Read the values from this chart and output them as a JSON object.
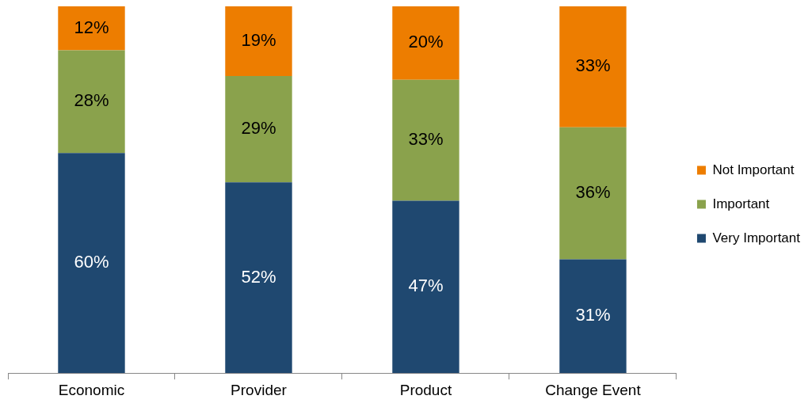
{
  "chart_data": {
    "type": "bar",
    "stacked": true,
    "categories": [
      "Economic",
      "Provider",
      "Product",
      "Change Event"
    ],
    "legend": "right",
    "grid": false,
    "series": [
      {
        "name": "Very Important",
        "color": "#1f4870",
        "values": [
          60,
          52,
          47,
          31
        ],
        "value_labels": [
          "60%",
          "52%",
          "47%",
          "31%"
        ]
      },
      {
        "name": "Important",
        "color": "#8aa24c",
        "values": [
          28,
          29,
          33,
          36
        ],
        "value_labels": [
          "28%",
          "29%",
          "33%",
          "36%"
        ]
      },
      {
        "name": "Not Important",
        "color": "#ed7d00",
        "values": [
          12,
          19,
          20,
          33
        ],
        "value_labels": [
          "12%",
          "19%",
          "20%",
          "33%"
        ]
      }
    ]
  }
}
